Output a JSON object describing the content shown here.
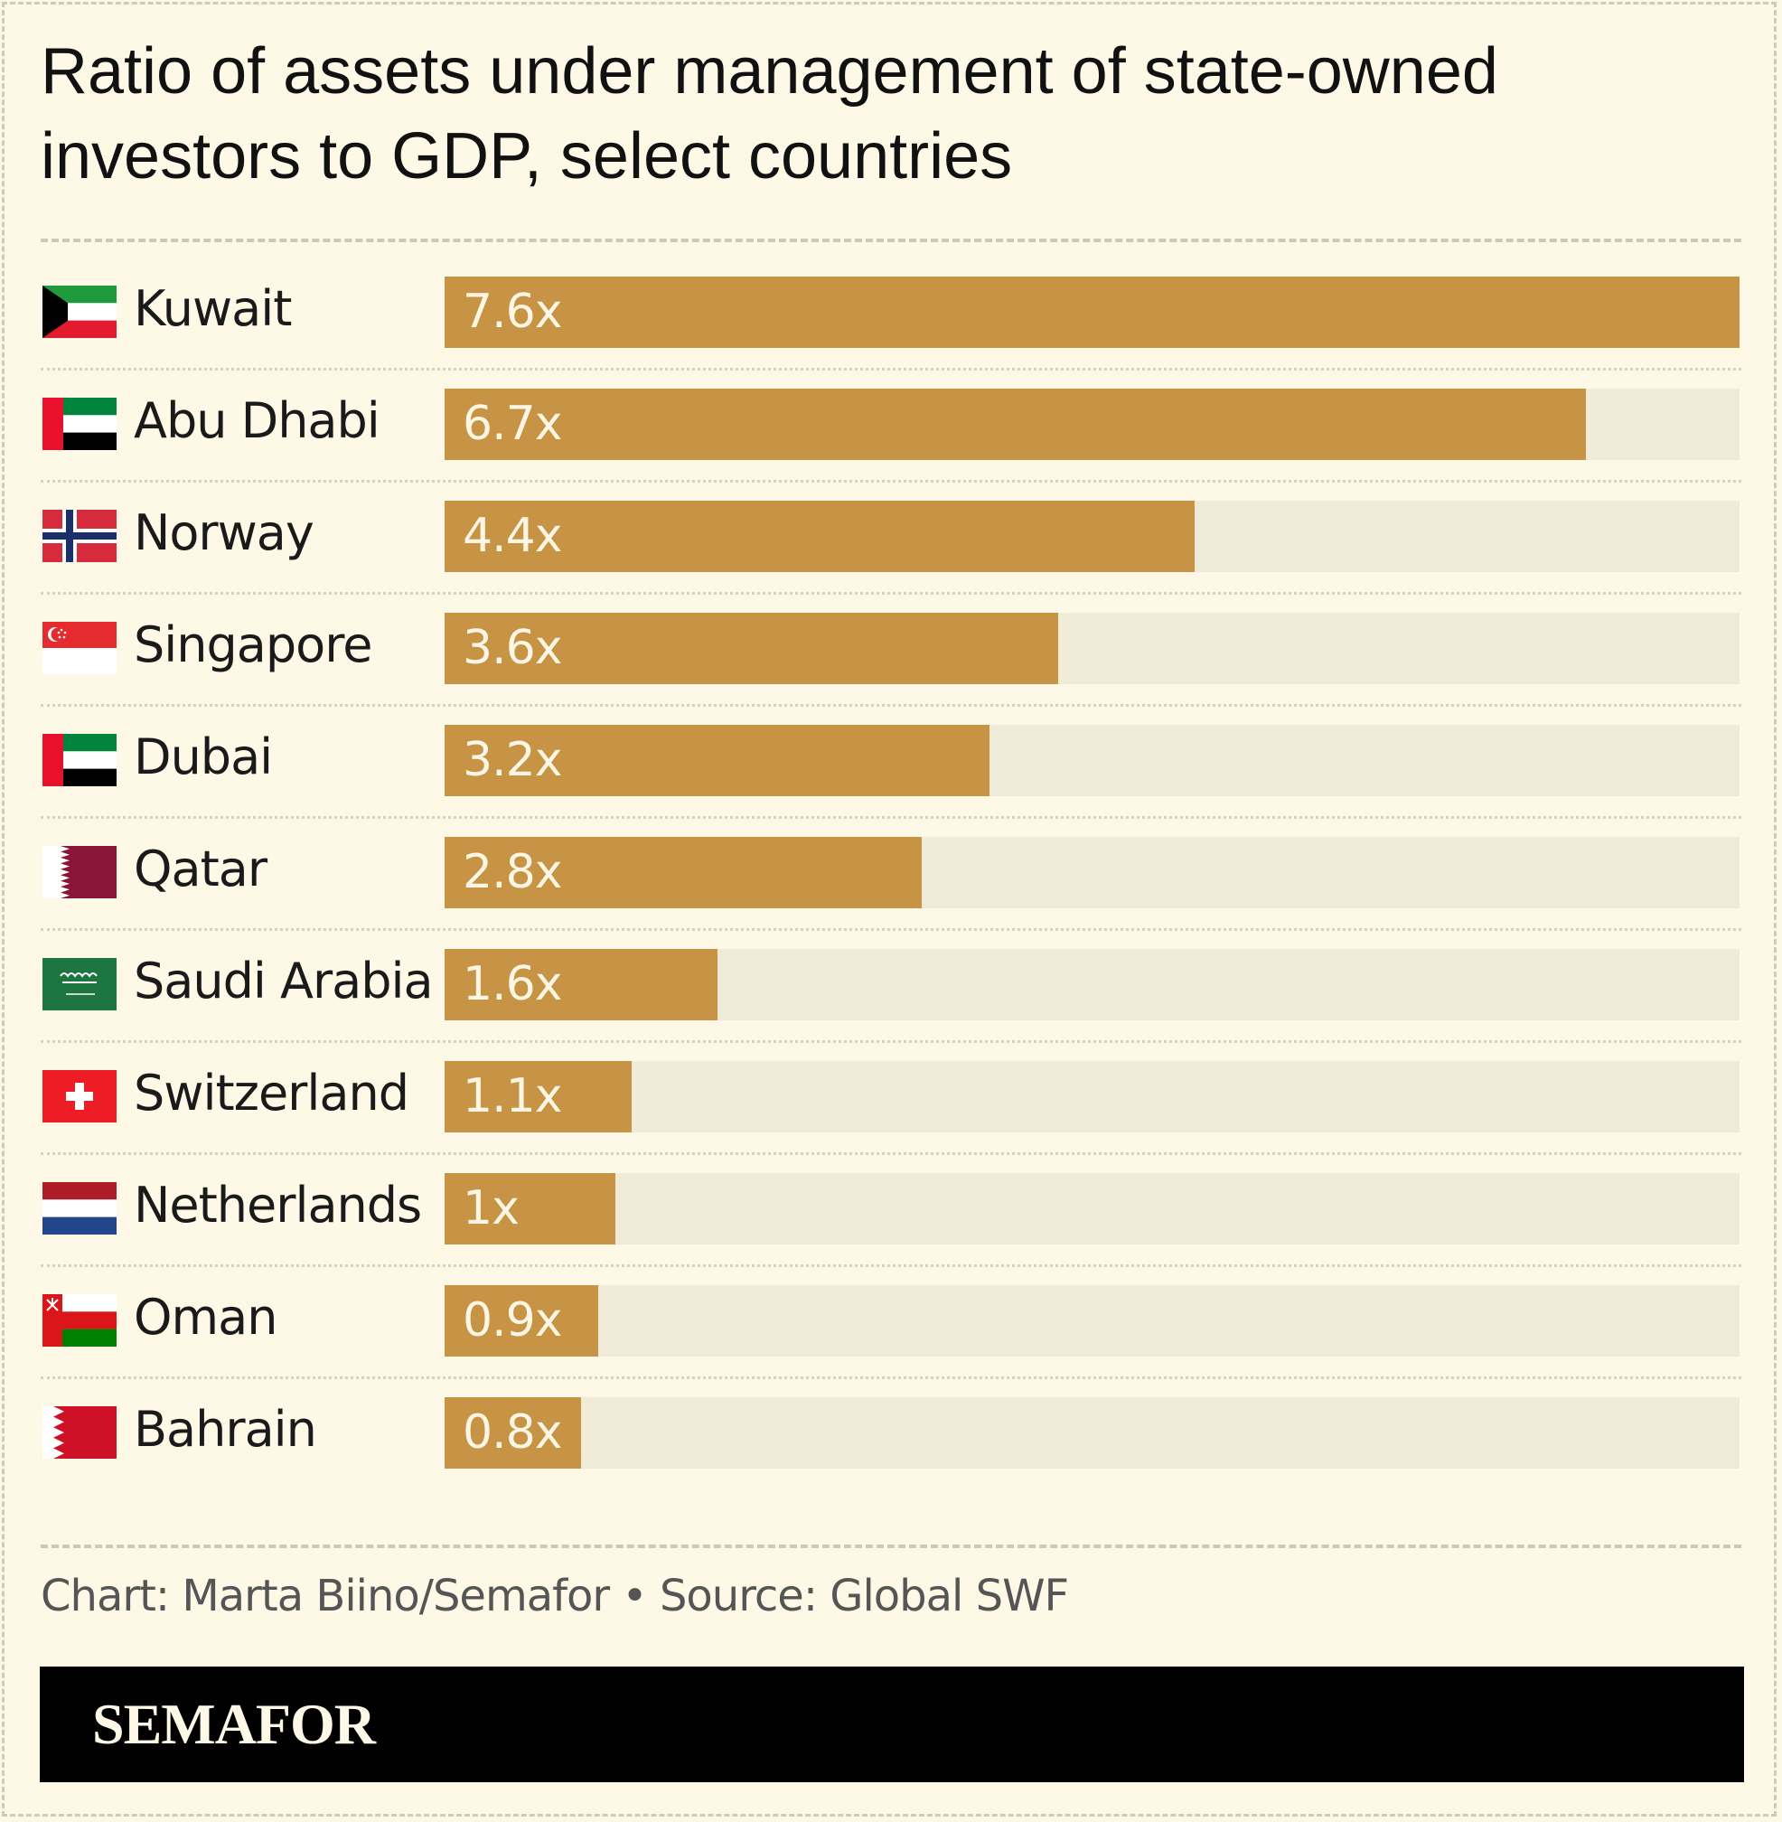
{
  "chart_data": {
    "type": "bar",
    "orientation": "horizontal",
    "title": "Ratio of assets under management of state-owned investors to GDP, select countries",
    "categories": [
      "Kuwait",
      "Abu Dhabi",
      "Norway",
      "Singapore",
      "Dubai",
      "Qatar",
      "Saudi Arabia",
      "Switzerland",
      "Netherlands",
      "Oman",
      "Bahrain"
    ],
    "values": [
      7.6,
      6.7,
      4.4,
      3.6,
      3.2,
      2.8,
      1.6,
      1.1,
      1.0,
      0.9,
      0.8
    ],
    "value_labels": [
      "7.6x",
      "6.7x",
      "4.4x",
      "3.6x",
      "3.2x",
      "2.8x",
      "1.6x",
      "1.1x",
      "1x",
      "0.9x",
      "0.8x"
    ],
    "xlim": [
      0,
      7.6
    ],
    "bar_color": "#c69444",
    "track_color": "#efebd8",
    "flags": [
      "kuwait-flag-icon",
      "uae-flag-icon",
      "norway-flag-icon",
      "singapore-flag-icon",
      "uae-flag-icon",
      "qatar-flag-icon",
      "saudi-arabia-flag-icon",
      "switzerland-flag-icon",
      "netherlands-flag-icon",
      "oman-flag-icon",
      "bahrain-flag-icon"
    ]
  },
  "footer": {
    "credit": "Chart: Marta Biino/Semafor • Source: Global SWF",
    "brand": "SEMAFOR"
  },
  "colors": {
    "background": "#fdf9e6",
    "brand_bar": "#000000"
  }
}
